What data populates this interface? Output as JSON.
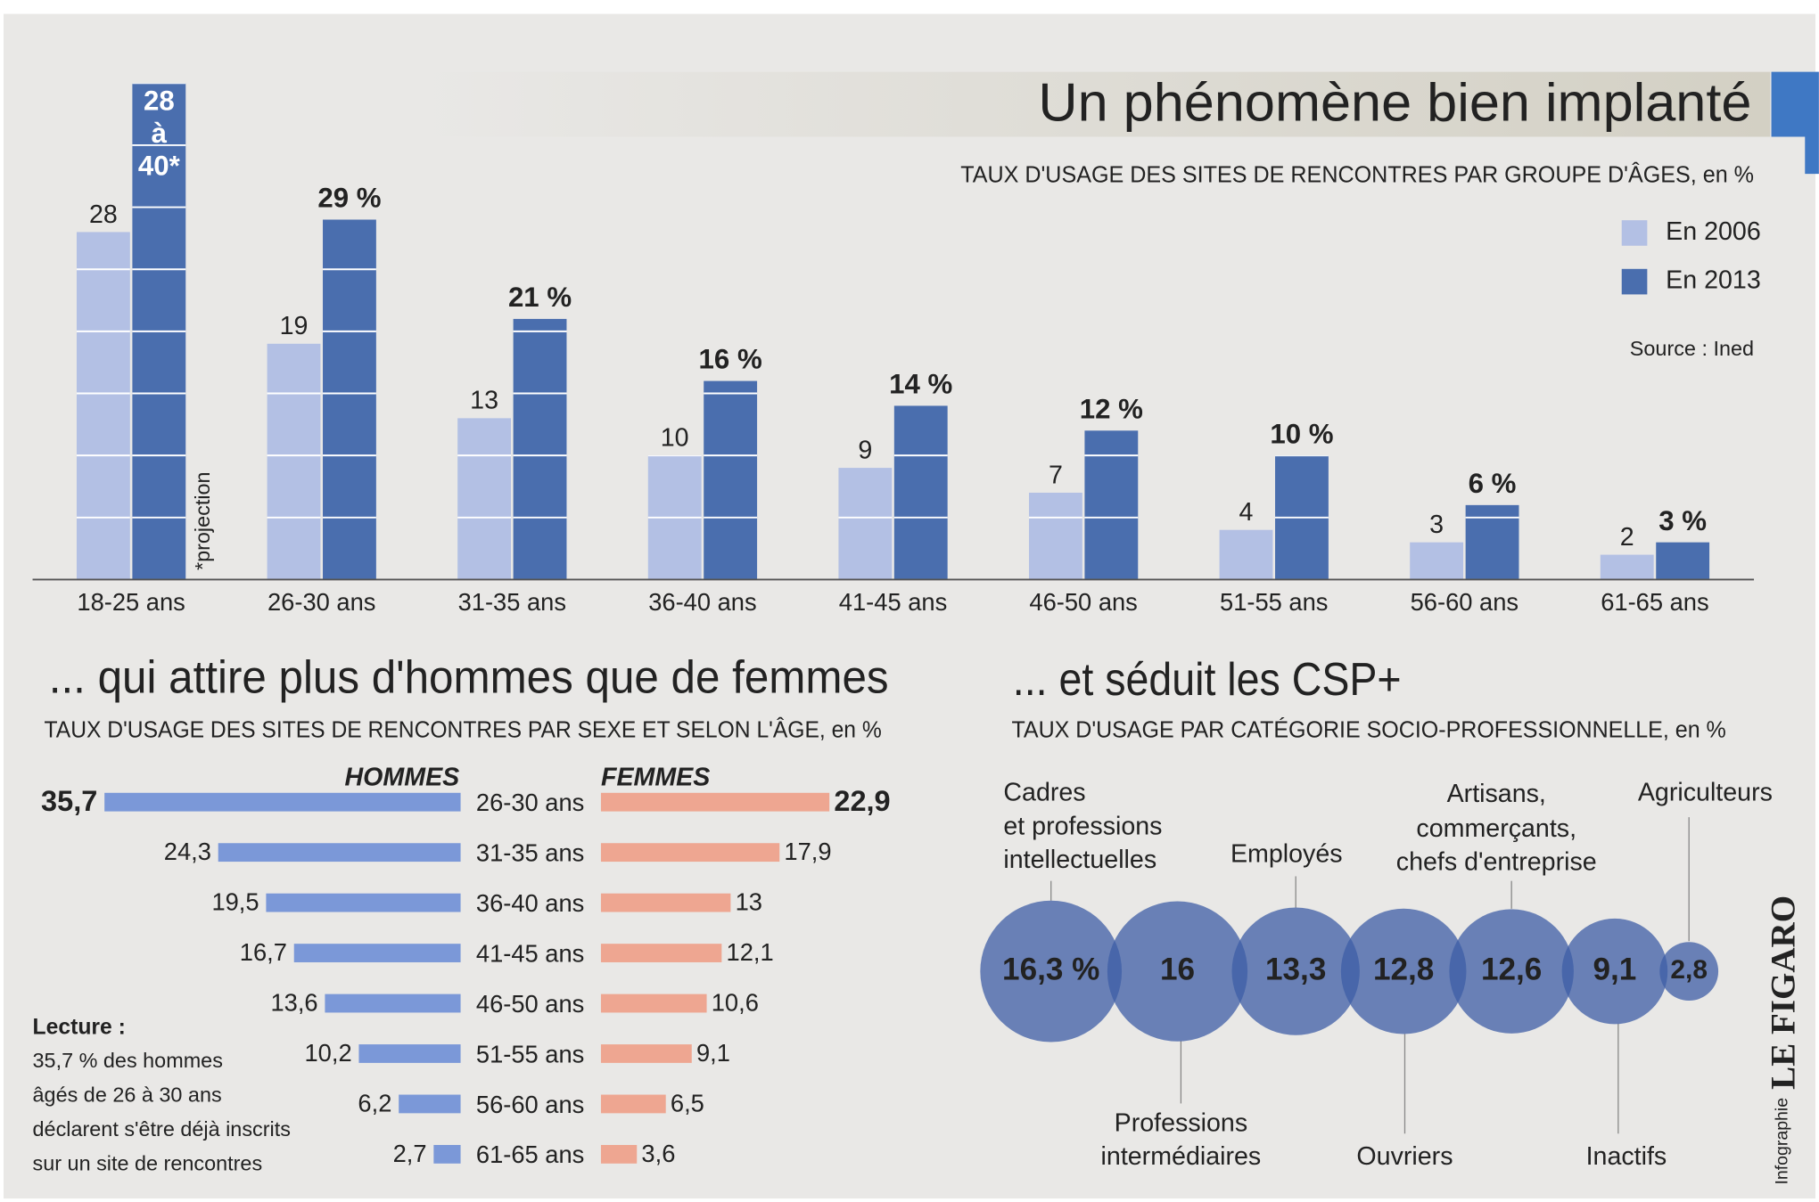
{
  "chart_data": [
    {
      "type": "bar",
      "title": "Un phénomène bien implanté",
      "subtitle": "TAUX D'USAGE DES SITES DE RENCONTRES PAR GROUPE D'ÂGES, en %",
      "categories": [
        "18-25 ans",
        "26-30 ans",
        "31-35 ans",
        "36-40 ans",
        "41-45 ans",
        "46-50 ans",
        "51-55 ans",
        "56-60 ans",
        "61-65 ans"
      ],
      "series": [
        {
          "name": "En 2006",
          "color": "#b3c0e4",
          "values": [
            28,
            19,
            13,
            10,
            9,
            7,
            4,
            3,
            2
          ]
        },
        {
          "name": "En 2013",
          "color": "#4a6eae",
          "values": [
            40,
            29,
            21,
            16,
            14,
            12,
            10,
            6,
            3
          ],
          "value_labels": [
            "28 à 40*",
            "29 %",
            "21 %",
            "16 %",
            "14 %",
            "12 %",
            "10 %",
            "6 %",
            "3 %"
          ]
        }
      ],
      "ylim": [
        0,
        41
      ],
      "yticks": [
        0,
        5,
        10,
        15,
        20,
        25,
        30,
        35,
        40
      ],
      "grid": true,
      "legend": "upper right",
      "annotation": "*projection",
      "source": "Source : Ined"
    },
    {
      "type": "butterfly",
      "title": "... qui attire plus d'hommes que de femmes",
      "subtitle": "TAUX D'USAGE DES SITES DE RENCONTRES PAR SEXE ET SELON L'ÂGE, en %",
      "categories": [
        "26-30 ans",
        "31-35 ans",
        "36-40 ans",
        "41-45 ans",
        "46-50 ans",
        "51-55 ans",
        "56-60 ans",
        "61-65 ans"
      ],
      "series": [
        {
          "name": "HOMMES",
          "color": "#7b98d8",
          "values": [
            35.7,
            24.3,
            19.5,
            16.7,
            13.6,
            10.2,
            6.2,
            2.7
          ],
          "value_labels": [
            "35,7",
            "24,3",
            "19,5",
            "16,7",
            "13,6",
            "10,2",
            "6,2",
            "2,7"
          ]
        },
        {
          "name": "FEMMES",
          "color": "#eea691",
          "values": [
            22.9,
            17.9,
            13,
            12.1,
            10.6,
            9.1,
            6.5,
            3.6
          ],
          "value_labels": [
            "22,9",
            "17,9",
            "13",
            "12,1",
            "10,6",
            "9,1",
            "6,5",
            "3,6"
          ]
        }
      ],
      "xlim": [
        0,
        40
      ],
      "note": {
        "title": "Lecture :",
        "lines": [
          "35,7 % des hommes",
          "âgés de 26 à 30 ans",
          "déclarent s'être déjà inscrits",
          "sur un site de rencontres"
        ]
      }
    },
    {
      "type": "bubble",
      "title": "... et séduit les CSP+",
      "subtitle": "TAUX D'USAGE PAR CATÉGORIE SOCIO-PROFESSIONNELLE, en %",
      "categories": [
        [
          "Cadres",
          "et professions",
          "intellectuelles"
        ],
        [
          "Professions",
          "intermédiaires"
        ],
        [
          "Employés"
        ],
        [
          "Ouvriers"
        ],
        [
          "Artisans,",
          "commerçants,",
          "chefs d'entreprise"
        ],
        [
          "Inactifs"
        ],
        [
          "Agriculteurs"
        ]
      ],
      "values": [
        16.3,
        16,
        13.3,
        12.8,
        12.6,
        9.1,
        2.8
      ],
      "value_labels": [
        "16,3 %",
        "16",
        "13,3",
        "12,8",
        "12,6",
        "9,1",
        "2,8"
      ],
      "color": "#3d5ea6"
    }
  ],
  "credit": "Infographie",
  "brand": "LE FIGARO"
}
